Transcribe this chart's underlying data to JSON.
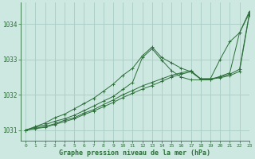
{
  "background_color": "#cce8e0",
  "grid_color": "#aaccC4",
  "line_color": "#2d6e3a",
  "text_color": "#2d6e3a",
  "xlabel": "Graphe pression niveau de la mer (hPa)",
  "xlim": [
    -0.5,
    23
  ],
  "ylim": [
    1030.7,
    1034.6
  ],
  "yticks": [
    1031,
    1032,
    1033,
    1034
  ],
  "xticks": [
    0,
    1,
    2,
    3,
    4,
    5,
    6,
    7,
    8,
    9,
    10,
    11,
    12,
    13,
    14,
    15,
    16,
    17,
    18,
    19,
    20,
    21,
    22,
    23
  ],
  "series": [
    [
      1031.0,
      1031.1,
      1031.2,
      1031.35,
      1031.45,
      1031.6,
      1031.75,
      1031.9,
      1032.1,
      1032.3,
      1032.55,
      1032.75,
      1033.1,
      1033.35,
      1033.05,
      1032.9,
      1032.75,
      1032.65,
      1032.45,
      1032.45,
      1033.0,
      1033.5,
      1033.75,
      1034.3
    ],
    [
      1031.0,
      1031.08,
      1031.15,
      1031.25,
      1031.32,
      1031.42,
      1031.55,
      1031.68,
      1031.82,
      1031.95,
      1032.15,
      1032.35,
      1033.05,
      1033.3,
      1032.98,
      1032.68,
      1032.5,
      1032.42,
      1032.42,
      1032.42,
      1032.52,
      1032.62,
      1033.75,
      1034.35
    ],
    [
      1031.0,
      1031.05,
      1031.1,
      1031.18,
      1031.28,
      1031.35,
      1031.48,
      1031.58,
      1031.72,
      1031.85,
      1032.0,
      1032.12,
      1032.25,
      1032.35,
      1032.45,
      1032.55,
      1032.62,
      1032.68,
      1032.45,
      1032.45,
      1032.5,
      1032.58,
      1032.72,
      1034.28
    ],
    [
      1031.0,
      1031.04,
      1031.08,
      1031.16,
      1031.24,
      1031.32,
      1031.44,
      1031.54,
      1031.66,
      1031.78,
      1031.92,
      1032.04,
      1032.16,
      1032.26,
      1032.38,
      1032.5,
      1032.58,
      1032.65,
      1032.44,
      1032.44,
      1032.48,
      1032.54,
      1032.66,
      1034.25
    ]
  ]
}
